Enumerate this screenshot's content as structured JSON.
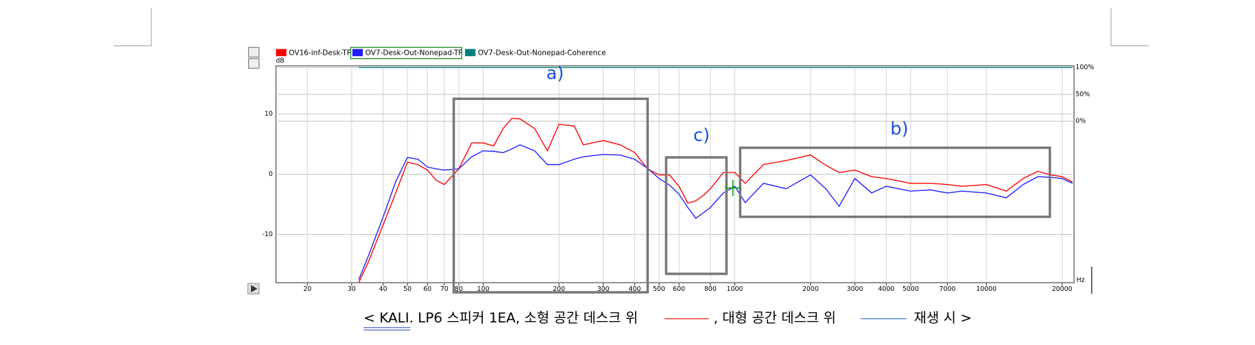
{
  "chart_data": {
    "type": "line",
    "log_x": true,
    "grid": true,
    "y_label": "dB",
    "x_label": "Hz",
    "x": [
      32,
      35,
      40,
      45,
      50,
      55,
      60,
      65,
      70,
      80,
      90,
      100,
      110,
      120,
      130,
      140,
      160,
      180,
      200,
      230,
      250,
      300,
      350,
      400,
      450,
      500,
      550,
      600,
      650,
      700,
      750,
      800,
      900,
      1000,
      1100,
      1300,
      1600,
      2000,
      2300,
      2600,
      3000,
      3500,
      4000,
      5000,
      6000,
      7000,
      8000,
      10000,
      12000,
      14000,
      16000,
      18000,
      20000,
      22000
    ],
    "xlim": [
      15,
      22300
    ],
    "xticks": [
      20,
      30,
      40,
      50,
      60,
      70,
      80,
      100,
      200,
      300,
      400,
      500,
      600,
      800,
      1000,
      2000,
      3000,
      4000,
      5000,
      7000,
      10000,
      20000
    ],
    "ylim": [
      -18,
      18
    ],
    "yticks": [
      -10,
      0,
      10
    ],
    "y2lim": [
      -300,
      103
    ],
    "y2ticks": [
      {
        "value": 0,
        "label": "0%"
      },
      {
        "value": 50,
        "label": "50%"
      },
      {
        "value": 100,
        "label": "100%"
      }
    ],
    "series": [
      {
        "name": "OV16-inf-Desk-TF",
        "color": "#ff0000",
        "values": [
          -18,
          -14.5,
          -8.4,
          -3,
          2,
          1.6,
          0.7,
          -1,
          -1.7,
          0.9,
          5.2,
          5.2,
          4.7,
          7.6,
          9.3,
          9.2,
          7.6,
          3.9,
          8.3,
          8,
          4.9,
          5.6,
          4.9,
          3.6,
          0.9,
          -0.1,
          -0.1,
          -2,
          -4.8,
          -4.4,
          -3.5,
          -2.4,
          0.3,
          0.3,
          -1.5,
          1.6,
          2.3,
          3.2,
          1.5,
          0.3,
          0.7,
          -0.4,
          -0.7,
          -1.5,
          -1.5,
          -1.7,
          -2,
          -1.7,
          -2.8,
          -0.7,
          0.5,
          -0.1,
          -0.4,
          -1.3
        ]
      },
      {
        "name": "OV7-Desk-Out-Nonepad-TF",
        "color": "#1f1fff",
        "values": [
          -17.5,
          -13.5,
          -7.1,
          -1.1,
          2.8,
          2.5,
          1.2,
          0.9,
          0.7,
          0.9,
          2.9,
          3.9,
          3.8,
          3.6,
          4.2,
          4.9,
          3.9,
          1.6,
          1.6,
          2.5,
          2.9,
          3.3,
          3.2,
          2.5,
          1,
          -0.7,
          -1.8,
          -3.3,
          -5.5,
          -7.3,
          -6.4,
          -5.5,
          -3.1,
          -2,
          -4.7,
          -1.5,
          -2.4,
          -0.1,
          -2.4,
          -5.3,
          -0.7,
          -3.1,
          -2,
          -2.8,
          -2.6,
          -3.1,
          -2.8,
          -3.1,
          -3.9,
          -1.7,
          -0.4,
          -0.5,
          -0.7,
          -1.5
        ]
      },
      {
        "name": "OV7-Desk-Out-Nonepad-Coherence",
        "color": "#008080",
        "axis": "y2",
        "values": [
          100,
          100,
          100,
          100,
          100,
          100,
          100,
          100,
          100,
          100,
          100,
          100,
          100,
          100,
          100,
          100,
          100,
          100,
          100,
          100,
          100,
          100,
          100,
          100,
          100,
          100,
          100,
          100,
          100,
          100,
          100,
          100,
          100,
          100,
          100,
          100,
          100,
          100,
          100,
          100,
          100,
          100,
          100,
          100,
          100,
          100,
          100,
          100,
          100,
          100,
          100,
          100,
          100,
          100
        ]
      }
    ],
    "annotations": [
      "a)",
      "b)",
      "c)"
    ]
  },
  "caption": {
    "parts": [
      "<  KALI. LP6 스피커 1EA, 소형 공간 데스크 위",
      ", 대형 공간 데스크 위",
      "재생 시 >"
    ]
  }
}
